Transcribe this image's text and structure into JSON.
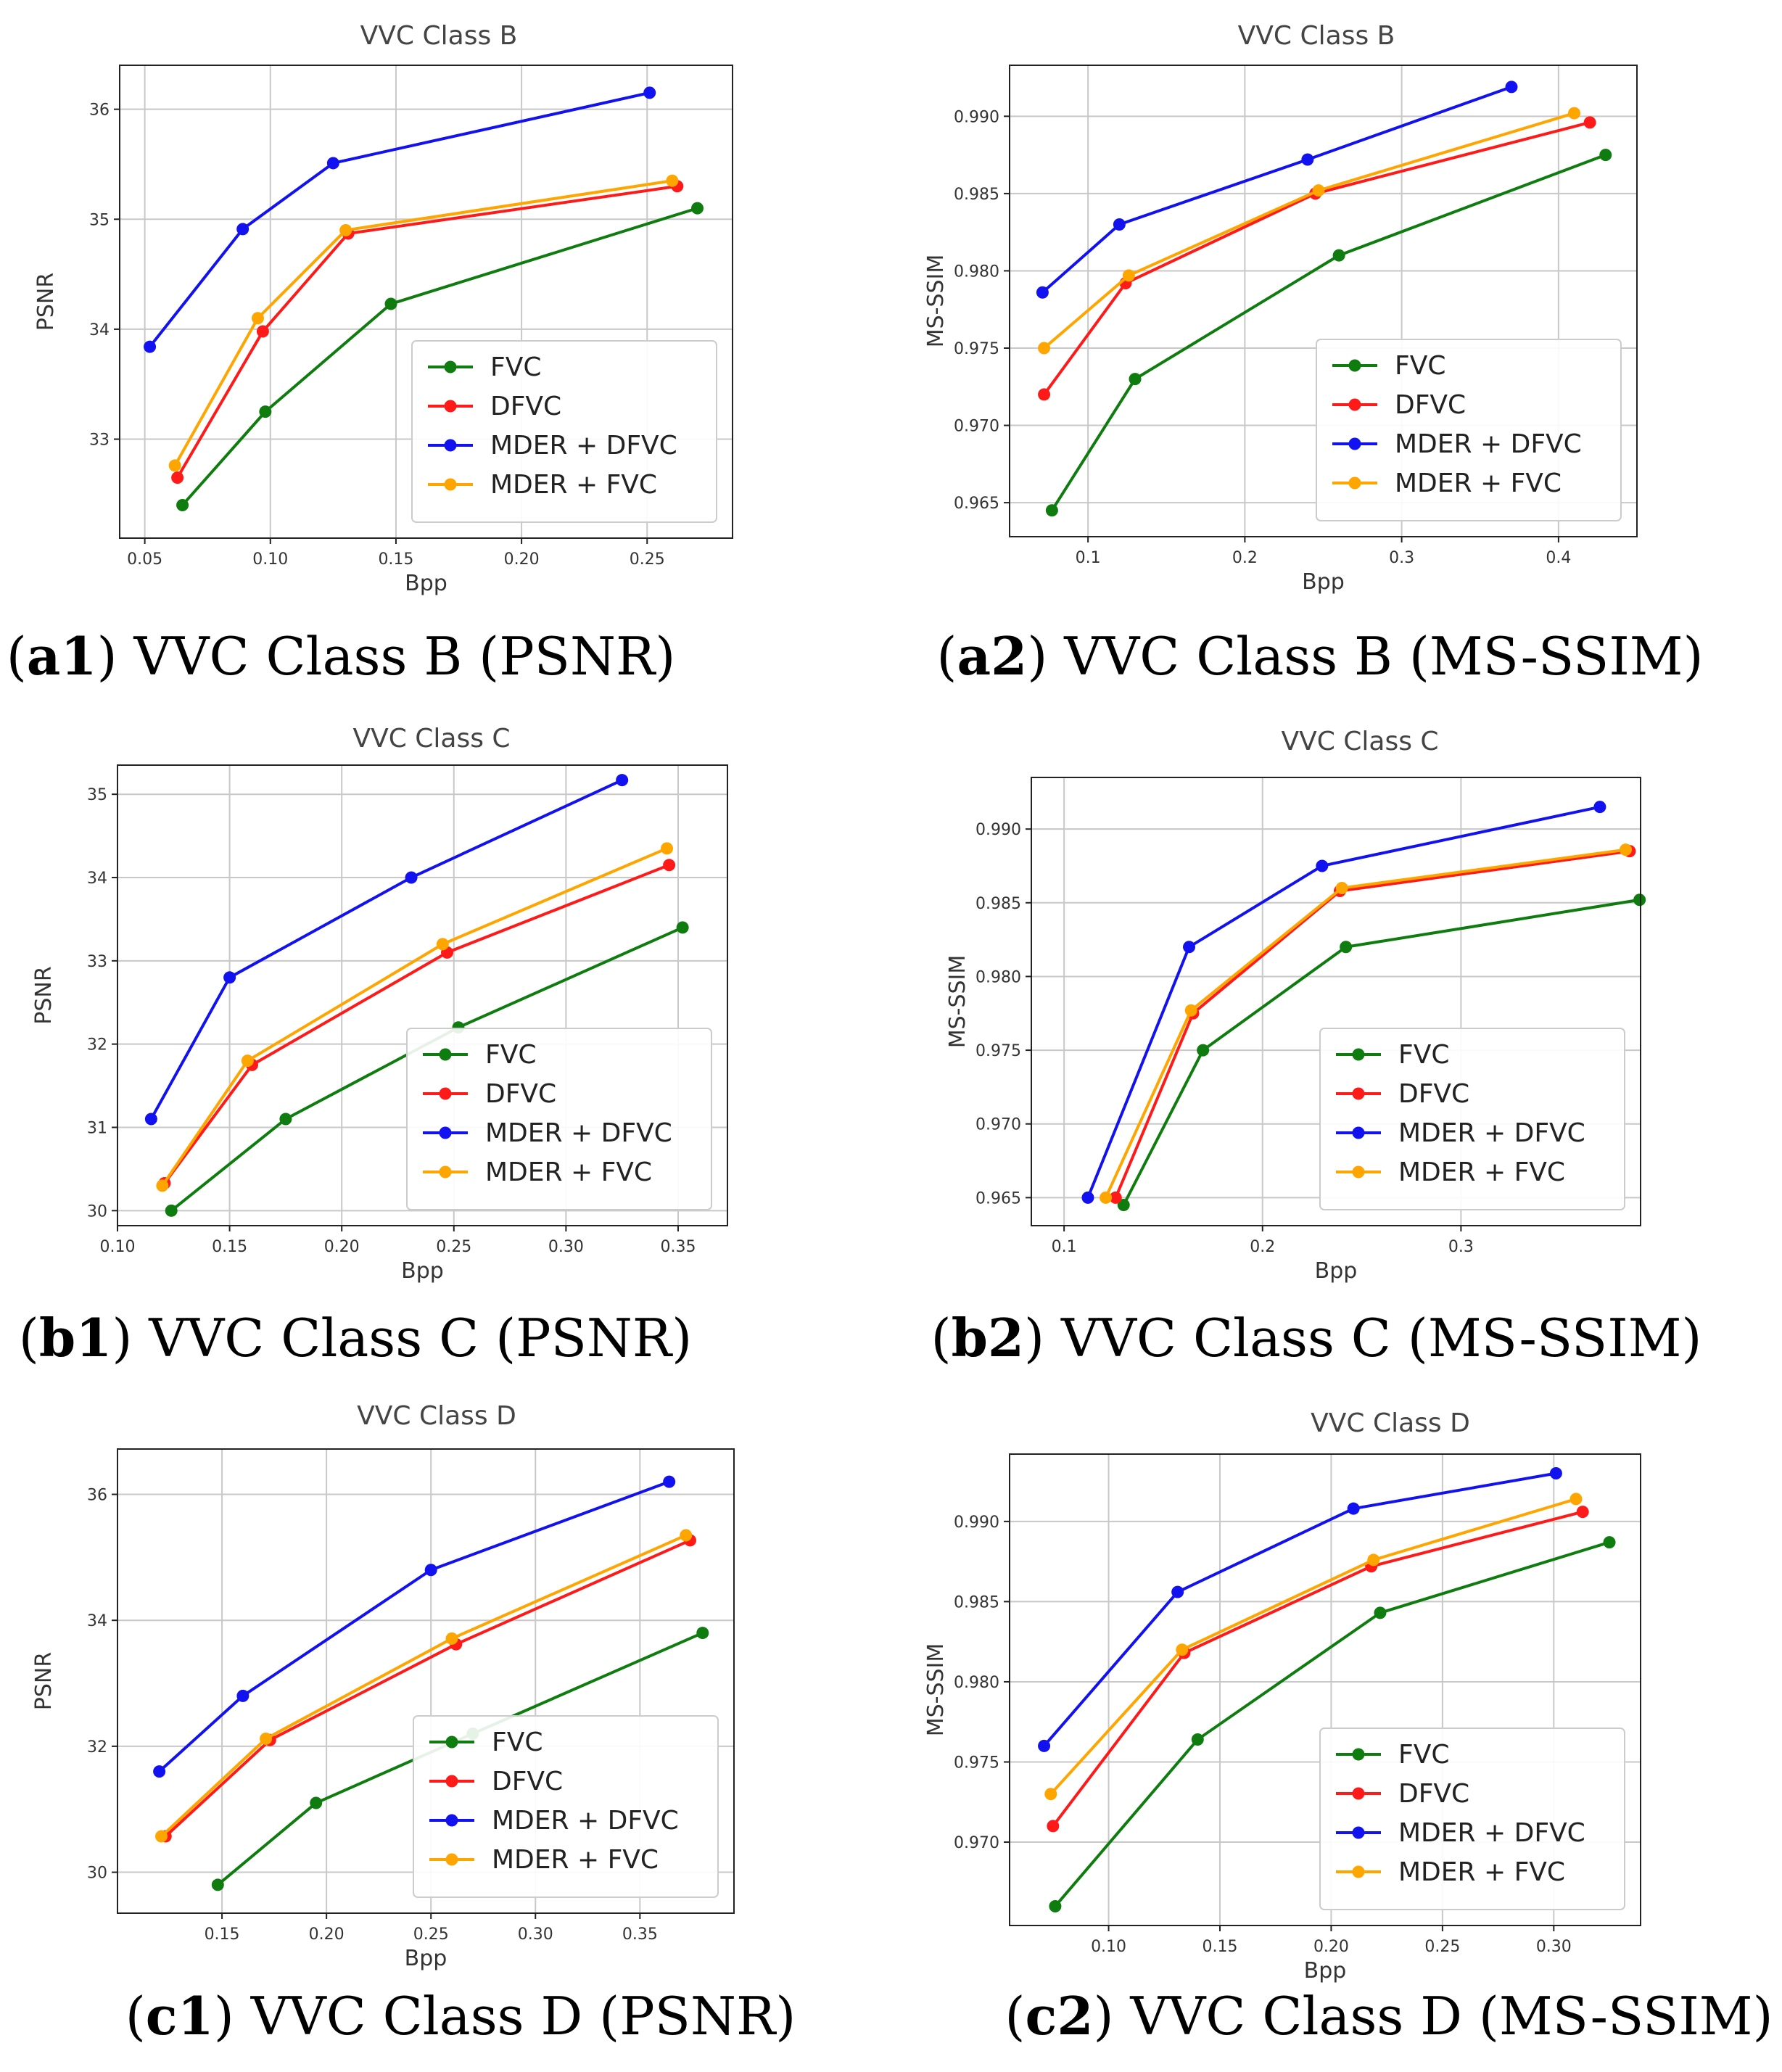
{
  "colors": {
    "FVC": "#0e7c0e",
    "DFVC": "#ff1a1a",
    "MDER + DFVC": "#1212f0",
    "MDER + FVC": "#ffa500"
  },
  "chart_data": [
    {
      "id": "a1",
      "type": "line",
      "title": "VVC Class B",
      "xlabel": "Bpp",
      "ylabel": "PSNR",
      "xlim": [
        0.04,
        0.284
      ],
      "ylim": [
        32.1,
        36.4
      ],
      "xticks": [
        "0.05",
        "0.10",
        "0.15",
        "0.20",
        "0.25"
      ],
      "yticks": [
        "33",
        "34",
        "35",
        "36"
      ],
      "legend_position": "lower-right",
      "caption": {
        "open": "(",
        "tag": "a1",
        "text": ") VVC Class B (PSNR)"
      },
      "series": [
        {
          "name": "FVC",
          "x": [
            0.065,
            0.098,
            0.148,
            0.27
          ],
          "y": [
            32.4,
            33.25,
            34.23,
            35.1
          ]
        },
        {
          "name": "DFVC",
          "x": [
            0.063,
            0.097,
            0.131,
            0.262
          ],
          "y": [
            32.65,
            33.98,
            34.87,
            35.3
          ]
        },
        {
          "name": "MDER + DFVC",
          "x": [
            0.052,
            0.089,
            0.125,
            0.251
          ],
          "y": [
            33.84,
            34.91,
            35.51,
            36.15
          ]
        },
        {
          "name": "MDER + FVC",
          "x": [
            0.062,
            0.095,
            0.13,
            0.26
          ],
          "y": [
            32.76,
            34.1,
            34.9,
            35.35
          ]
        }
      ]
    },
    {
      "id": "a2",
      "type": "line",
      "title": "VVC Class B",
      "xlabel": "Bpp",
      "ylabel": "MS-SSIM",
      "xlim": [
        0.05,
        0.45
      ],
      "ylim": [
        0.9628,
        0.9933
      ],
      "xticks": [
        "0.1",
        "0.2",
        "0.3",
        "0.4"
      ],
      "yticks": [
        "0.965",
        "0.970",
        "0.975",
        "0.980",
        "0.985",
        "0.990"
      ],
      "legend_position": "lower-right",
      "caption": {
        "open": "(",
        "tag": "a2",
        "text": ") VVC Class B (MS-SSIM)"
      },
      "series": [
        {
          "name": "FVC",
          "x": [
            0.077,
            0.13,
            0.26,
            0.43
          ],
          "y": [
            0.9645,
            0.973,
            0.981,
            0.9875
          ]
        },
        {
          "name": "DFVC",
          "x": [
            0.072,
            0.124,
            0.245,
            0.42
          ],
          "y": [
            0.972,
            0.9792,
            0.985,
            0.9896
          ]
        },
        {
          "name": "MDER + DFVC",
          "x": [
            0.071,
            0.12,
            0.24,
            0.37
          ],
          "y": [
            0.9786,
            0.983,
            0.9872,
            0.9919
          ]
        },
        {
          "name": "MDER + FVC",
          "x": [
            0.072,
            0.126,
            0.247,
            0.41
          ],
          "y": [
            0.975,
            0.9797,
            0.9852,
            0.9902
          ]
        }
      ]
    },
    {
      "id": "b1",
      "type": "line",
      "title": "VVC Class C",
      "xlabel": "Bpp",
      "ylabel": "PSNR",
      "xlim": [
        0.1,
        0.372
      ],
      "ylim": [
        29.82,
        35.35
      ],
      "xticks": [
        "0.10",
        "0.15",
        "0.20",
        "0.25",
        "0.30",
        "0.35"
      ],
      "yticks": [
        "30",
        "31",
        "32",
        "33",
        "34",
        "35"
      ],
      "legend_position": "lower-right",
      "caption": {
        "open": "(",
        "tag": "b1",
        "text": ") VVC Class C (PSNR)"
      },
      "series": [
        {
          "name": "FVC",
          "x": [
            0.124,
            0.175,
            0.252,
            0.352
          ],
          "y": [
            30.0,
            31.1,
            32.2,
            33.4
          ]
        },
        {
          "name": "DFVC",
          "x": [
            0.121,
            0.16,
            0.247,
            0.346
          ],
          "y": [
            30.33,
            31.75,
            33.1,
            34.15
          ]
        },
        {
          "name": "MDER + DFVC",
          "x": [
            0.115,
            0.15,
            0.231,
            0.325
          ],
          "y": [
            31.1,
            32.8,
            34.0,
            35.17
          ]
        },
        {
          "name": "MDER + FVC",
          "x": [
            0.12,
            0.158,
            0.245,
            0.345
          ],
          "y": [
            30.3,
            31.8,
            33.2,
            34.35
          ]
        }
      ]
    },
    {
      "id": "b2",
      "type": "line",
      "title": "VVC Class C",
      "xlabel": "Bpp",
      "ylabel": "MS-SSIM",
      "xlim": [
        0.0835,
        0.3905
      ],
      "ylim": [
        0.9631,
        0.9935
      ],
      "xticks": [
        "0.1",
        "0.2",
        "0.3"
      ],
      "yticks": [
        "0.965",
        "0.970",
        "0.975",
        "0.980",
        "0.985",
        "0.990"
      ],
      "legend_position": "lower-right",
      "caption": {
        "open": "(",
        "tag": "b2",
        "text": ") VVC Class C (MS-SSIM)"
      },
      "series": [
        {
          "name": "FVC",
          "x": [
            0.13,
            0.17,
            0.242,
            0.39
          ],
          "y": [
            0.9645,
            0.975,
            0.982,
            0.9852
          ]
        },
        {
          "name": "DFVC",
          "x": [
            0.126,
            0.165,
            0.239,
            0.385
          ],
          "y": [
            0.965,
            0.9775,
            0.9858,
            0.9885
          ]
        },
        {
          "name": "MDER + DFVC",
          "x": [
            0.112,
            0.163,
            0.23,
            0.37
          ],
          "y": [
            0.965,
            0.982,
            0.9875,
            0.9915
          ]
        },
        {
          "name": "MDER + FVC",
          "x": [
            0.121,
            0.164,
            0.24,
            0.383
          ],
          "y": [
            0.965,
            0.9777,
            0.986,
            0.9886
          ]
        }
      ]
    },
    {
      "id": "c1",
      "type": "line",
      "title": "VVC Class D",
      "xlabel": "Bpp",
      "ylabel": "PSNR",
      "xlim": [
        0.1,
        0.395
      ],
      "ylim": [
        29.35,
        36.72
      ],
      "xticks": [
        "0.15",
        "0.20",
        "0.25",
        "0.30",
        "0.35"
      ],
      "yticks": [
        "30",
        "32",
        "34",
        "36"
      ],
      "legend_position": "lower-right",
      "caption": {
        "open": "(",
        "tag": "c1",
        "text": ") VVC Class D (PSNR)"
      },
      "series": [
        {
          "name": "FVC",
          "x": [
            0.148,
            0.195,
            0.27,
            0.38
          ],
          "y": [
            29.8,
            31.1,
            32.2,
            33.8
          ]
        },
        {
          "name": "DFVC",
          "x": [
            0.123,
            0.173,
            0.262,
            0.374
          ],
          "y": [
            30.57,
            32.1,
            33.62,
            35.27
          ]
        },
        {
          "name": "MDER + DFVC",
          "x": [
            0.12,
            0.16,
            0.25,
            0.364
          ],
          "y": [
            31.6,
            32.8,
            34.8,
            36.2
          ]
        },
        {
          "name": "MDER + FVC",
          "x": [
            0.121,
            0.171,
            0.26,
            0.372
          ],
          "y": [
            30.57,
            32.12,
            33.71,
            35.35
          ]
        }
      ]
    },
    {
      "id": "c2",
      "type": "line",
      "title": "VVC Class D",
      "xlabel": "Bpp",
      "ylabel": "MS-SSIM",
      "xlim": [
        0.0555,
        0.339
      ],
      "ylim": [
        0.9648,
        0.9942
      ],
      "xticks": [
        "0.10",
        "0.15",
        "0.20",
        "0.25",
        "0.30"
      ],
      "yticks": [
        "0.970",
        "0.975",
        "0.980",
        "0.985",
        "0.990"
      ],
      "legend_position": "lower-right",
      "caption": {
        "open": "(",
        "tag": "c2",
        "text": ") VVC Class D (MS-SSIM)"
      },
      "series": [
        {
          "name": "FVC",
          "x": [
            0.076,
            0.14,
            0.222,
            0.325
          ],
          "y": [
            0.966,
            0.9764,
            0.9843,
            0.9887
          ]
        },
        {
          "name": "DFVC",
          "x": [
            0.075,
            0.134,
            0.218,
            0.313
          ],
          "y": [
            0.971,
            0.9818,
            0.9872,
            0.9906
          ]
        },
        {
          "name": "MDER + DFVC",
          "x": [
            0.071,
            0.131,
            0.21,
            0.301
          ],
          "y": [
            0.976,
            0.9856,
            0.9908,
            0.993
          ]
        },
        {
          "name": "MDER + FVC",
          "x": [
            0.074,
            0.133,
            0.219,
            0.31
          ],
          "y": [
            0.973,
            0.982,
            0.9876,
            0.9914
          ]
        }
      ]
    }
  ]
}
